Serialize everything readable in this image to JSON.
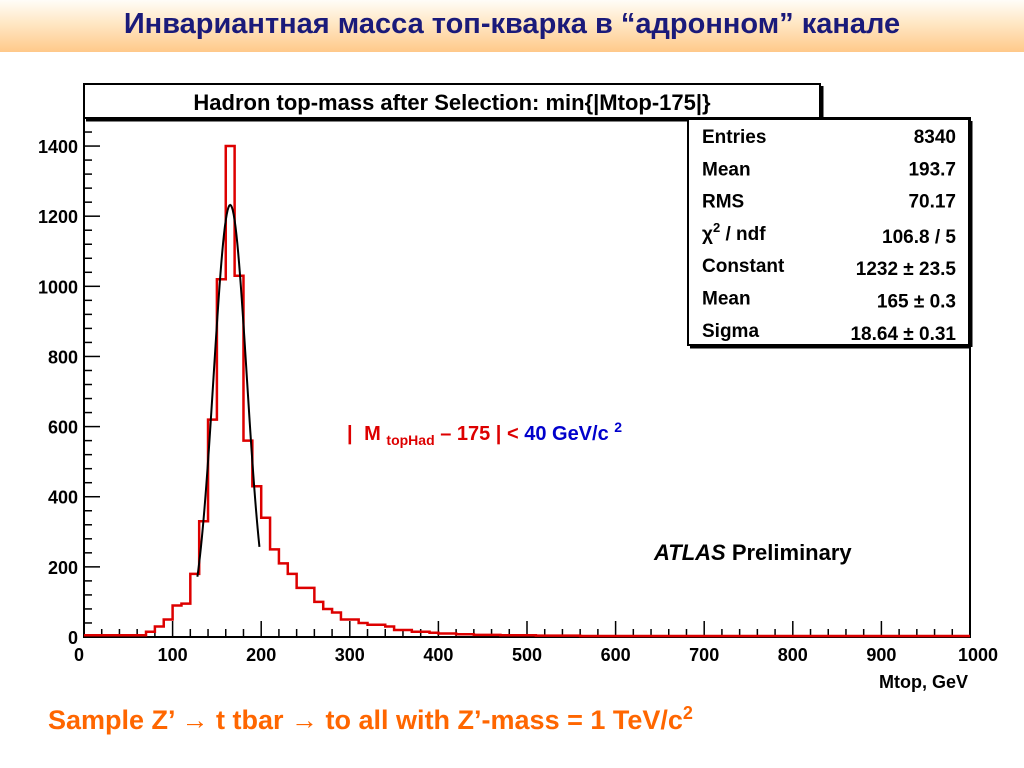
{
  "slide": {
    "title": "Инвариантная масса топ-кварка в “адронном” канале",
    "caption_text": "Sample Z’ → t tbar → to all with Z’-mass = 1 TeV/c",
    "caption_superscript": "2"
  },
  "colors": {
    "histogram": "#dd0000",
    "fit": "#000000",
    "caption": "#ff6600",
    "title": "#1a1a7a",
    "cut_blue": "#0000cc"
  },
  "chart_data": {
    "type": "bar",
    "title": "Hadron top-mass after Selection: min{|Mtop-175|}",
    "xlabel": "Mtop, GeV",
    "ylabel": "",
    "xlim": [
      0,
      1000
    ],
    "ylim": [
      0,
      1480
    ],
    "x_ticks": [
      0,
      100,
      200,
      300,
      400,
      500,
      600,
      700,
      800,
      900,
      1000
    ],
    "y_ticks": [
      0,
      200,
      400,
      600,
      800,
      1000,
      1200,
      1400
    ],
    "bin_width": 10,
    "series": [
      {
        "values": [
          5,
          5,
          5,
          5,
          5,
          5,
          5,
          15,
          30,
          50,
          90,
          95,
          180,
          330,
          620,
          1020,
          1400,
          1030,
          560,
          430,
          340,
          250,
          210,
          180,
          140,
          140,
          100,
          80,
          70,
          50,
          50,
          40,
          35,
          35,
          30,
          20,
          20,
          15,
          15,
          12,
          10,
          10,
          8,
          8,
          6,
          6,
          6,
          5,
          5,
          5,
          5,
          4,
          4,
          4,
          4,
          4,
          3,
          3,
          3,
          3,
          3,
          3,
          3,
          3,
          3,
          3,
          3,
          3,
          3,
          3,
          3,
          3,
          3,
          3,
          3,
          3,
          3,
          3,
          3,
          3,
          3,
          3,
          3,
          3,
          3,
          3,
          3,
          3,
          3,
          3,
          3,
          3,
          3,
          3,
          3,
          3,
          3,
          3,
          3,
          3
        ]
      }
    ],
    "fit": {
      "type": "gaussian",
      "constant": 1232,
      "mean": 165,
      "sigma": 18.64,
      "x_range": [
        128,
        198
      ]
    },
    "stats_box": {
      "rows": [
        {
          "label": "Entries",
          "value": "8340"
        },
        {
          "label": "Mean",
          "value": "193.7"
        },
        {
          "label": "RMS",
          "value": "70.17"
        },
        {
          "label": "χ2 / ndf",
          "label_main": "χ",
          "label_sup": "2",
          "label_rest": " / ndf",
          "value": "106.8 / 5"
        },
        {
          "label": "Constant",
          "value": "1232 ± 23.5"
        },
        {
          "label": "Mean",
          "value": "165 ± 0.3"
        },
        {
          "label": "Sigma",
          "value": "18.64 ± 0.31"
        }
      ]
    },
    "annotations": {
      "cut_bar_open": "|",
      "cut_M": "M",
      "cut_sub": "topHad",
      "cut_red_rest": " – 175 |",
      "cut_lt": " < ",
      "cut_blue": "40 GeV/c",
      "cut_blue_sup": "2",
      "atlas_italic": "ATLAS",
      "atlas_rest": " Preliminary"
    }
  }
}
